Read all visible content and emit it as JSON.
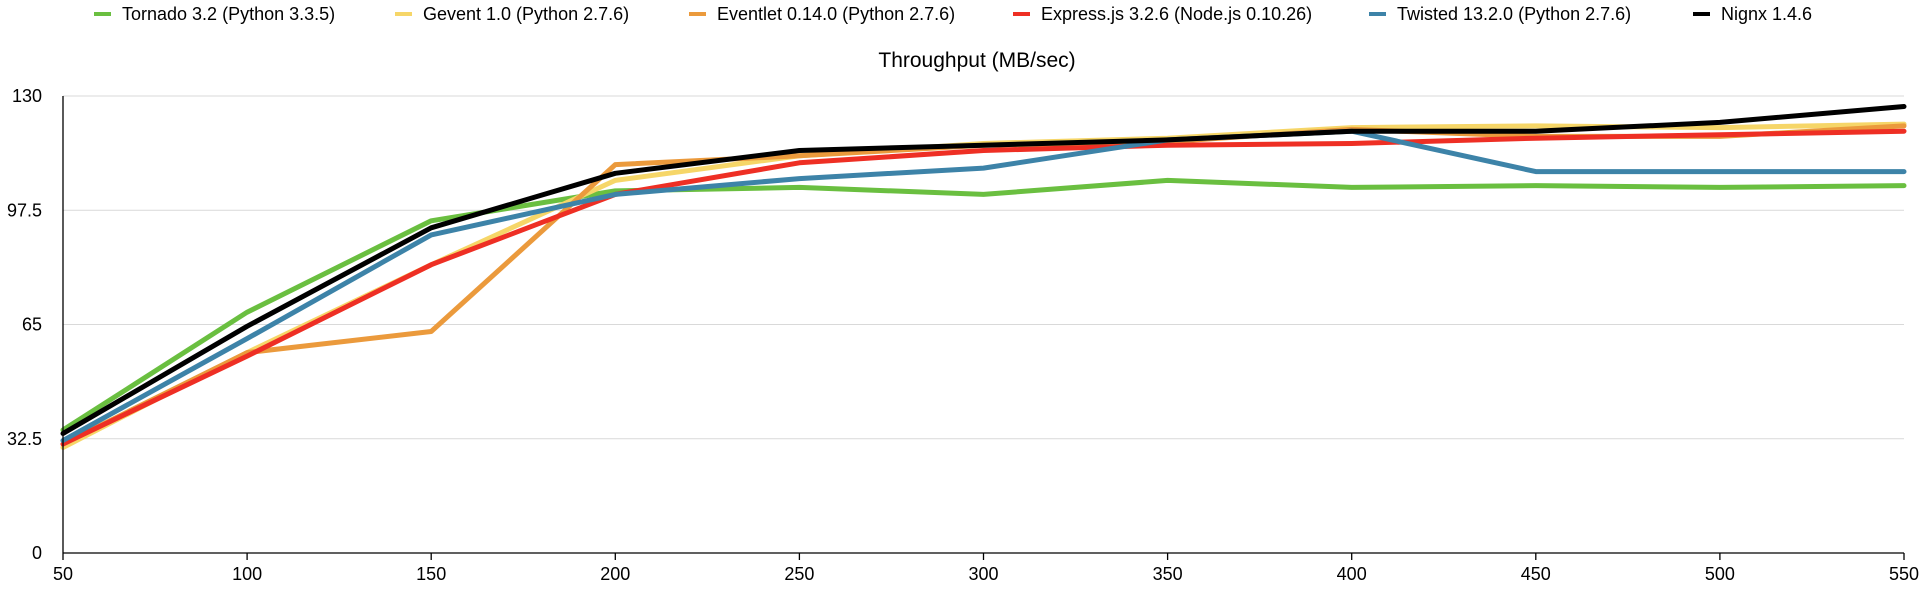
{
  "chart_data": {
    "type": "line",
    "title": "Throughput (MB/sec)",
    "xlabel": "",
    "ylabel": "",
    "x": [
      50,
      100,
      150,
      200,
      250,
      300,
      350,
      400,
      450,
      500,
      550
    ],
    "x_tick_labels": [
      "50",
      "100",
      "150",
      "200",
      "250",
      "300",
      "350",
      "400",
      "450",
      "500",
      "550"
    ],
    "y_tick_labels": [
      "0",
      "32.5",
      "65",
      "97.5",
      "130"
    ],
    "y_ticks": [
      0,
      32.5,
      65,
      97.5,
      130
    ],
    "xlim": [
      50,
      550
    ],
    "ylim": [
      0,
      130
    ],
    "grid": true,
    "legend_position": "top",
    "series": [
      {
        "name": "Tornado 3.2 (Python 3.3.5)",
        "color": "#6abf40",
        "values": [
          35,
          68.5,
          94.5,
          103,
          104,
          102,
          106,
          104,
          104.5,
          104,
          104.5
        ]
      },
      {
        "name": "Gevent 1.0 (Python 2.7.6)",
        "color": "#f6d668",
        "values": [
          30,
          57,
          82,
          106,
          113,
          116.5,
          118,
          121,
          121.5,
          121,
          122
        ]
      },
      {
        "name": "Eventlet 0.14.0 (Python 2.7.6)",
        "color": "#eb9a3c",
        "values": [
          31,
          57,
          63,
          110.5,
          113,
          116,
          117,
          120.5,
          118.5,
          118.5,
          121.5
        ]
      },
      {
        "name": "Express.js 3.2.6 (Node.js 0.10.26)",
        "color": "#ee2f24",
        "values": [
          31,
          56,
          82,
          102,
          111,
          114.5,
          116,
          116.5,
          118,
          119,
          120
        ]
      },
      {
        "name": "Twisted 13.2.0 (Python 2.7.6)",
        "color": "#3d83a8",
        "values": [
          32,
          61,
          90.5,
          102,
          106.5,
          109.5,
          117.5,
          120,
          108.5,
          108.5,
          108.5
        ]
      },
      {
        "name": "Nignx 1.4.6",
        "color": "#000000",
        "values": [
          34,
          64.5,
          92.5,
          108,
          114.5,
          116,
          117.5,
          120,
          120,
          122.5,
          127
        ]
      }
    ]
  }
}
